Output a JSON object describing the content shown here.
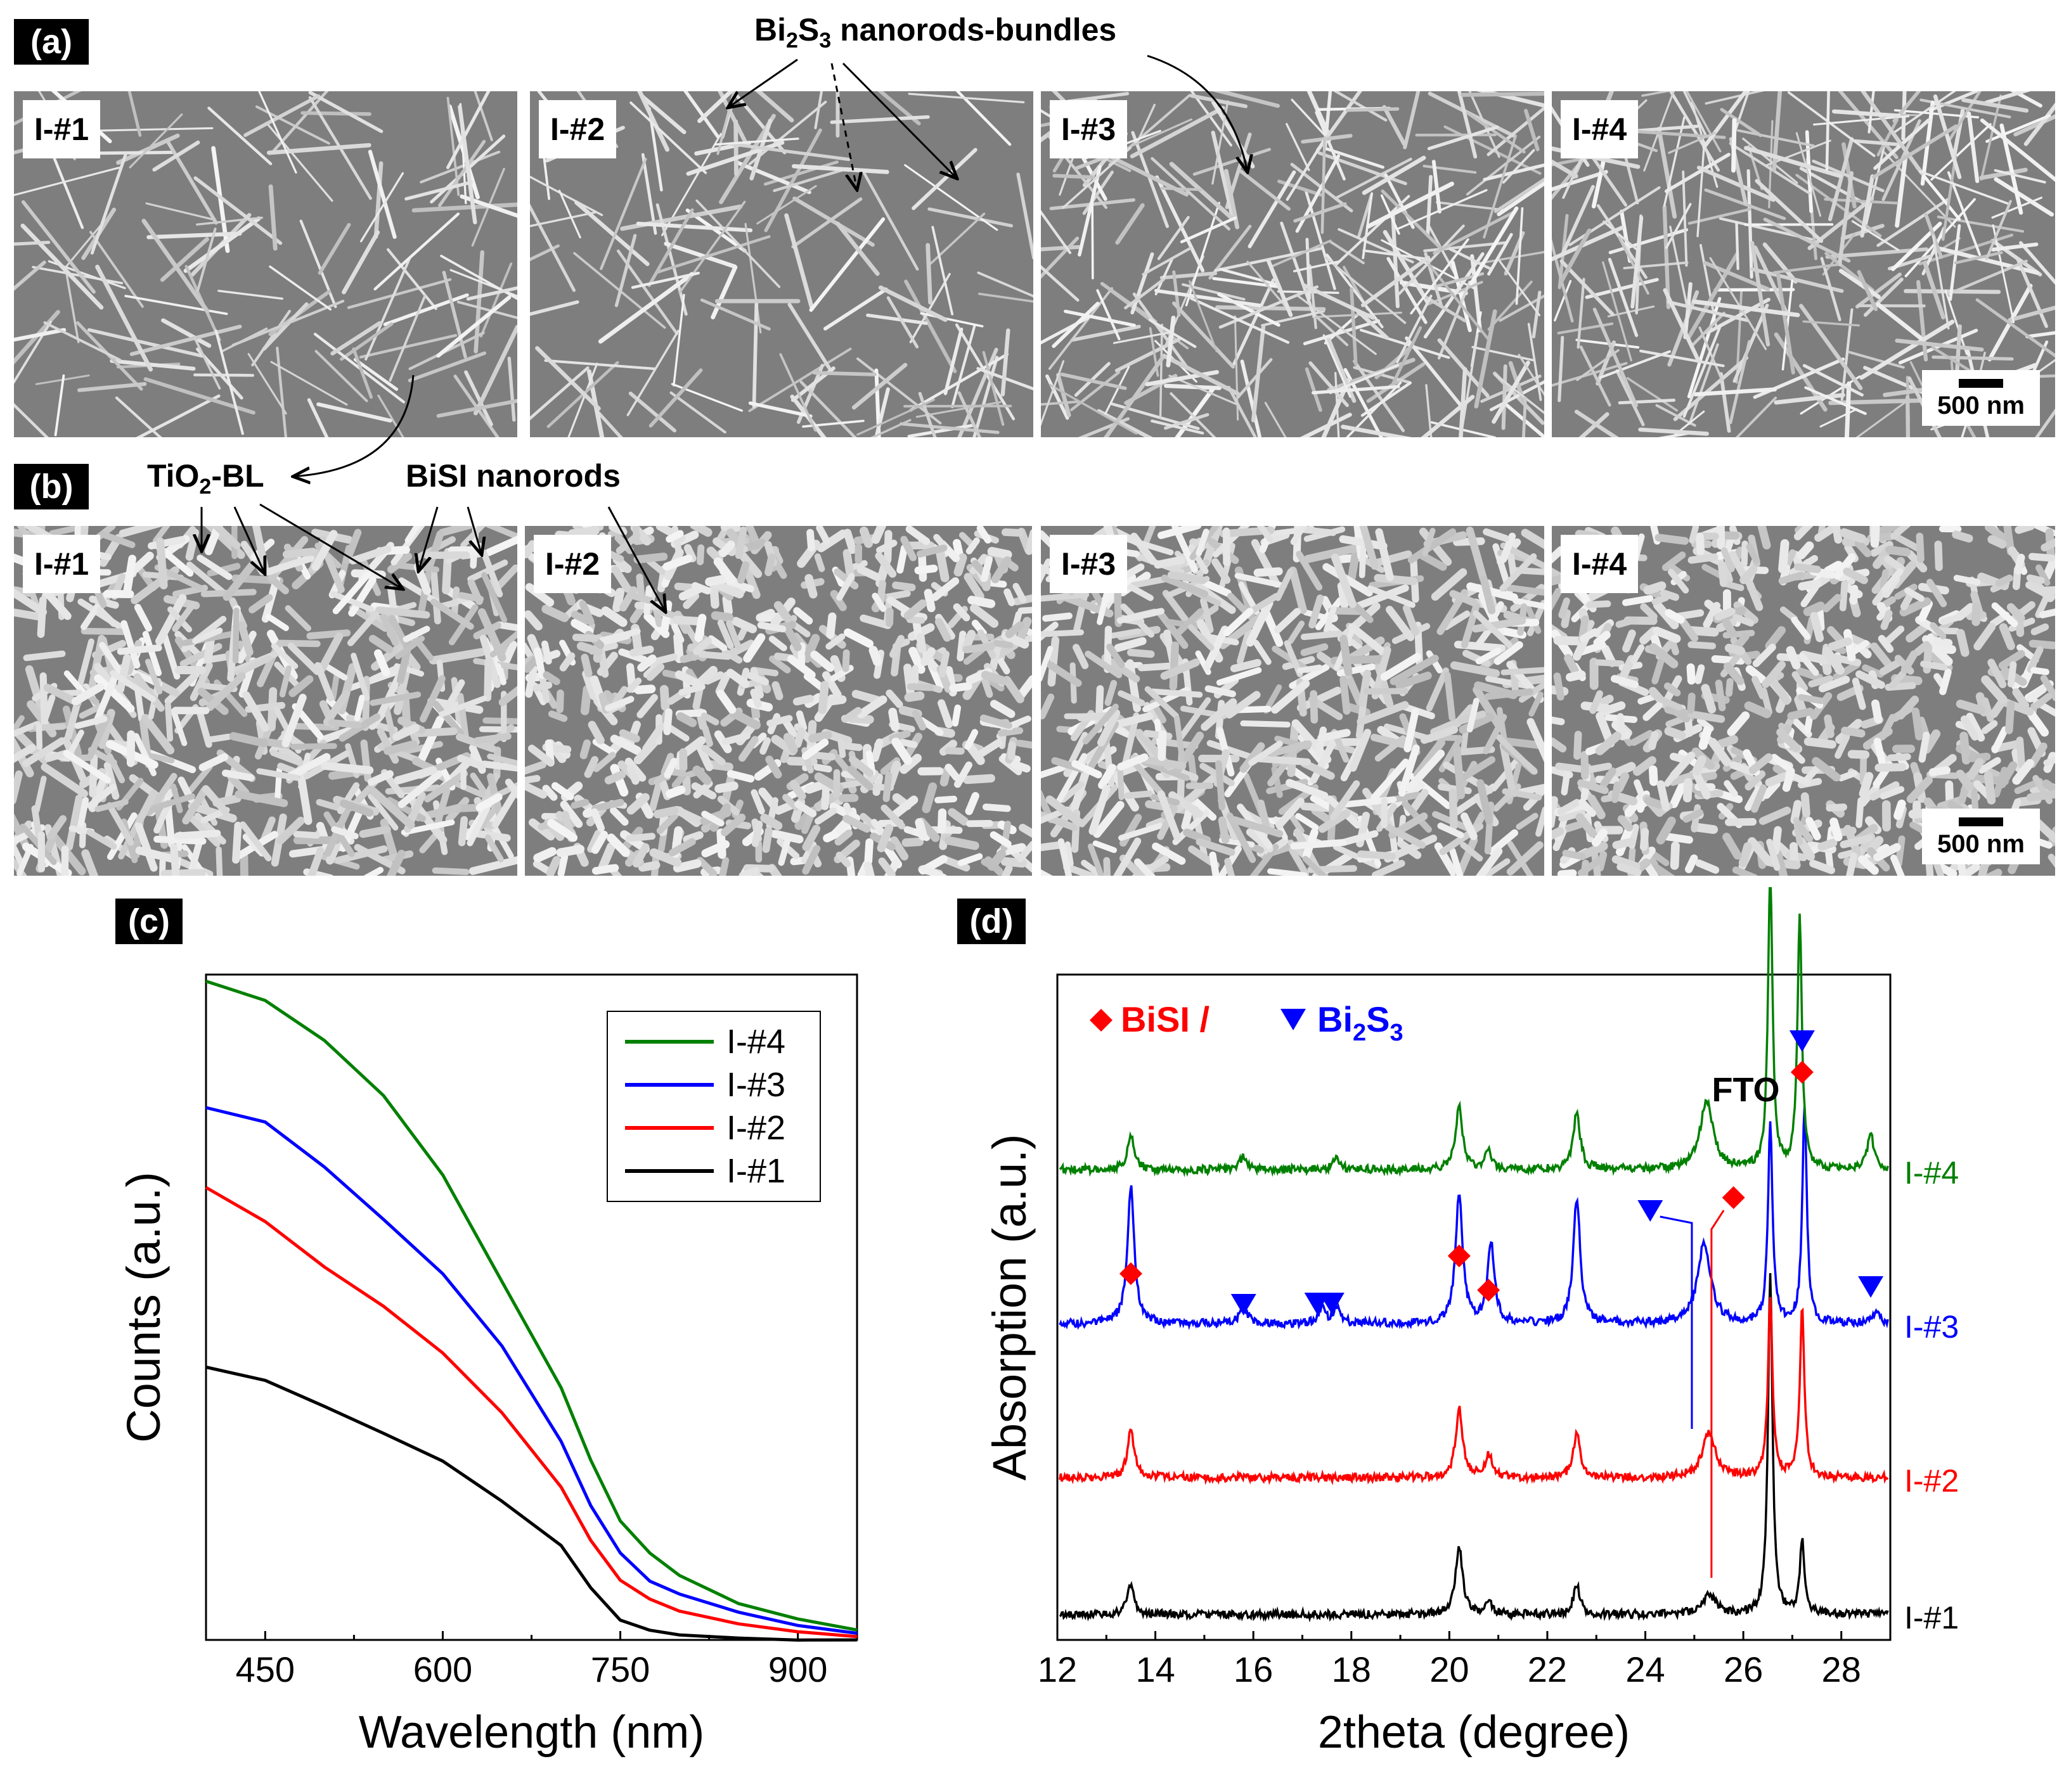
{
  "panels": {
    "a": {
      "tag": "(a)",
      "images": [
        "I-#1",
        "I-#2",
        "I-#3",
        "I-#4"
      ],
      "scale_bar": "500 nm",
      "annotation": {
        "prefix": "Bi",
        "sub1": "2",
        "mid": "S",
        "sub2": "3",
        "suffix": " nanorods-bundles"
      }
    },
    "b": {
      "tag": "(b)",
      "images": [
        "I-#1",
        "I-#2",
        "I-#3",
        "I-#4"
      ],
      "scale_bar": "500 nm",
      "annotation_tio2": {
        "prefix": "TiO",
        "sub": "2",
        "suffix": "-BL"
      },
      "annotation_bisi": "BiSI nanorods"
    },
    "c": {
      "tag": "(c)"
    },
    "d": {
      "tag": "(d)"
    }
  },
  "colors": {
    "I-#1": "#000000",
    "I-#2": "#ff0000",
    "I-#3": "#0000ff",
    "I-#4": "#008000",
    "sem_bg": "#7e7e7e"
  },
  "chart_data": [
    {
      "type": "line",
      "panel": "c",
      "xlabel": "Wavelength (nm)",
      "ylabel": "Counts (a.u.)",
      "xlim": [
        400,
        950
      ],
      "ylim": [
        0,
        1.0
      ],
      "xticks": [
        450,
        600,
        750,
        900
      ],
      "legend": [
        "I-#4",
        "I-#3",
        "I-#2",
        "I-#1"
      ],
      "legend_position": "top-right",
      "x": [
        400,
        450,
        500,
        550,
        600,
        650,
        700,
        725,
        750,
        775,
        800,
        850,
        900,
        950
      ],
      "series": [
        {
          "name": "I-#1",
          "color": "#000000",
          "values": [
            0.41,
            0.39,
            0.35,
            0.31,
            0.27,
            0.21,
            0.14,
            0.08,
            0.03,
            0.015,
            0.008,
            0.003,
            0.001,
            0.0
          ]
        },
        {
          "name": "I-#2",
          "color": "#ff0000",
          "values": [
            0.68,
            0.63,
            0.56,
            0.5,
            0.43,
            0.34,
            0.23,
            0.15,
            0.09,
            0.06,
            0.045,
            0.025,
            0.012,
            0.005
          ]
        },
        {
          "name": "I-#3",
          "color": "#0000ff",
          "values": [
            0.8,
            0.78,
            0.71,
            0.63,
            0.55,
            0.44,
            0.3,
            0.2,
            0.13,
            0.09,
            0.068,
            0.04,
            0.022,
            0.01
          ]
        },
        {
          "name": "I-#4",
          "color": "#008000",
          "values": [
            0.99,
            0.96,
            0.9,
            0.82,
            0.7,
            0.54,
            0.38,
            0.27,
            0.18,
            0.13,
            0.095,
            0.055,
            0.03,
            0.015
          ]
        }
      ]
    },
    {
      "type": "line",
      "panel": "d",
      "xlabel": "2theta (degree)",
      "ylabel": "Absorption (a.u.)",
      "xlim": [
        12,
        29
      ],
      "xticks": [
        12,
        14,
        16,
        18,
        20,
        22,
        24,
        26,
        28
      ],
      "legend": {
        "bisi": "BiSI",
        "sep": " / ",
        "bi2s3": {
          "prefix": "Bi",
          "sub1": "2",
          "mid": "S",
          "sub2": "3"
        }
      },
      "fto_label": "FTO",
      "series_labels": [
        "I-#4",
        "I-#3",
        "I-#2",
        "I-#1"
      ],
      "offsets": {
        "I-#1": 0.0,
        "I-#2": 0.24,
        "I-#3": 0.51,
        "I-#4": 0.78
      },
      "peaks": [
        {
          "name": "I-#1",
          "color": "#000000",
          "peaks": [
            [
              13.5,
              0.05
            ],
            [
              20.2,
              0.12
            ],
            [
              20.8,
              0.025
            ],
            [
              22.6,
              0.05
            ],
            [
              25.3,
              0.035
            ],
            [
              26.55,
              0.6
            ],
            [
              27.2,
              0.13
            ]
          ]
        },
        {
          "name": "I-#2",
          "color": "#ff0000",
          "peaks": [
            [
              13.5,
              0.085
            ],
            [
              20.2,
              0.12
            ],
            [
              20.8,
              0.04
            ],
            [
              22.6,
              0.08
            ],
            [
              25.3,
              0.08
            ],
            [
              26.55,
              0.32
            ],
            [
              27.2,
              0.3
            ]
          ]
        },
        {
          "name": "I-#3",
          "color": "#0000ff",
          "peaks": [
            [
              13.5,
              0.24
            ],
            [
              15.8,
              0.035
            ],
            [
              17.4,
              0.025
            ],
            [
              17.7,
              0.03
            ],
            [
              20.2,
              0.23
            ],
            [
              20.85,
              0.14
            ],
            [
              22.6,
              0.22
            ],
            [
              25.2,
              0.14
            ],
            [
              26.55,
              0.35
            ],
            [
              27.25,
              0.38
            ],
            [
              28.7,
              0.02
            ]
          ]
        },
        {
          "name": "I-#4",
          "color": "#008000",
          "peaks": [
            [
              13.5,
              0.06
            ],
            [
              15.8,
              0.025
            ],
            [
              17.7,
              0.02
            ],
            [
              20.2,
              0.11
            ],
            [
              20.8,
              0.03
            ],
            [
              22.6,
              0.1
            ],
            [
              25.25,
              0.12
            ],
            [
              26.55,
              0.52
            ],
            [
              27.15,
              0.44
            ],
            [
              28.6,
              0.06
            ]
          ]
        }
      ],
      "bisi_markers": [
        13.5,
        20.2,
        20.8,
        25.8,
        27.2
      ],
      "bi2s3_markers": [
        15.8,
        17.3,
        17.6,
        24.1,
        27.2,
        28.6
      ]
    }
  ]
}
